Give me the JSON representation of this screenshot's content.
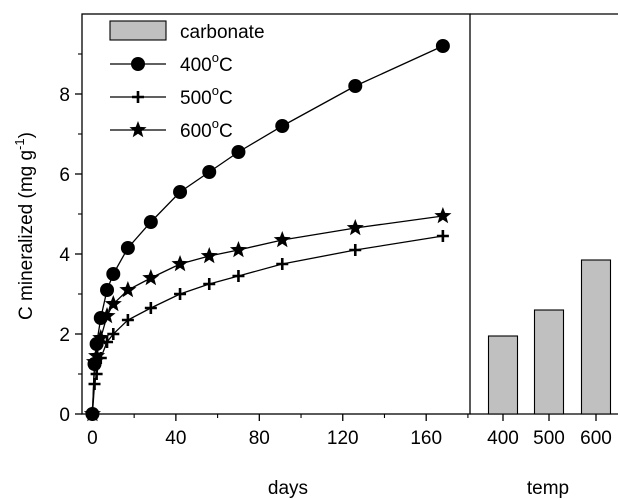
{
  "chart_data": [
    {
      "type": "line",
      "xlabel": "days",
      "ylabel": "C mineralized (mg g-1)",
      "ylabel_parts": {
        "main": "C mineralized (mg g",
        "sup": "-1",
        "close": ")"
      },
      "xlim": [
        -5,
        181
      ],
      "ylim": [
        0,
        10
      ],
      "x_ticks": [
        0,
        40,
        80,
        120,
        160
      ],
      "y_ticks": [
        0,
        2,
        4,
        6,
        8
      ],
      "grid": false,
      "legend_position": "top-left",
      "series": [
        {
          "name": "400oC",
          "label": {
            "num": "400",
            "sup": "o",
            "unit": "C"
          },
          "marker": "circle",
          "points": [
            [
              0,
              0
            ],
            [
              1,
              1.25
            ],
            [
              2,
              1.75
            ],
            [
              4,
              2.4
            ],
            [
              7,
              3.1
            ],
            [
              10,
              3.5
            ],
            [
              17,
              4.15
            ],
            [
              28,
              4.8
            ],
            [
              42,
              5.55
            ],
            [
              56,
              6.05
            ],
            [
              70,
              6.55
            ],
            [
              91,
              7.2
            ],
            [
              126,
              8.2
            ],
            [
              168,
              9.2
            ]
          ]
        },
        {
          "name": "500oC",
          "label": {
            "num": "500",
            "sup": "o",
            "unit": "C"
          },
          "marker": "plus",
          "points": [
            [
              0,
              0
            ],
            [
              1,
              0.75
            ],
            [
              2,
              1.0
            ],
            [
              4,
              1.4
            ],
            [
              7,
              1.8
            ],
            [
              10,
              2.0
            ],
            [
              17,
              2.35
            ],
            [
              28,
              2.65
            ],
            [
              42,
              3.0
            ],
            [
              56,
              3.25
            ],
            [
              70,
              3.45
            ],
            [
              91,
              3.75
            ],
            [
              126,
              4.1
            ],
            [
              168,
              4.45
            ]
          ]
        },
        {
          "name": "600oC",
          "label": {
            "num": "600",
            "sup": "o",
            "unit": "C"
          },
          "marker": "star",
          "points": [
            [
              0,
              0
            ],
            [
              1,
              1.3
            ],
            [
              2,
              1.45
            ],
            [
              4,
              1.9
            ],
            [
              7,
              2.45
            ],
            [
              10,
              2.75
            ],
            [
              17,
              3.1
            ],
            [
              28,
              3.4
            ],
            [
              42,
              3.75
            ],
            [
              56,
              3.95
            ],
            [
              70,
              4.1
            ],
            [
              91,
              4.35
            ],
            [
              126,
              4.65
            ],
            [
              168,
              4.95
            ]
          ]
        }
      ]
    },
    {
      "type": "bar",
      "xlabel": "temp",
      "ylabel": "",
      "categories": [
        "400",
        "500",
        "600"
      ],
      "series": [
        {
          "name": "carbonate",
          "values": [
            1.95,
            2.6,
            3.85
          ]
        }
      ],
      "ylim": [
        0,
        10
      ]
    }
  ],
  "colors": {
    "line": "#000000",
    "bar_fill": "#c0c0c0",
    "bar_stroke": "#000000"
  }
}
